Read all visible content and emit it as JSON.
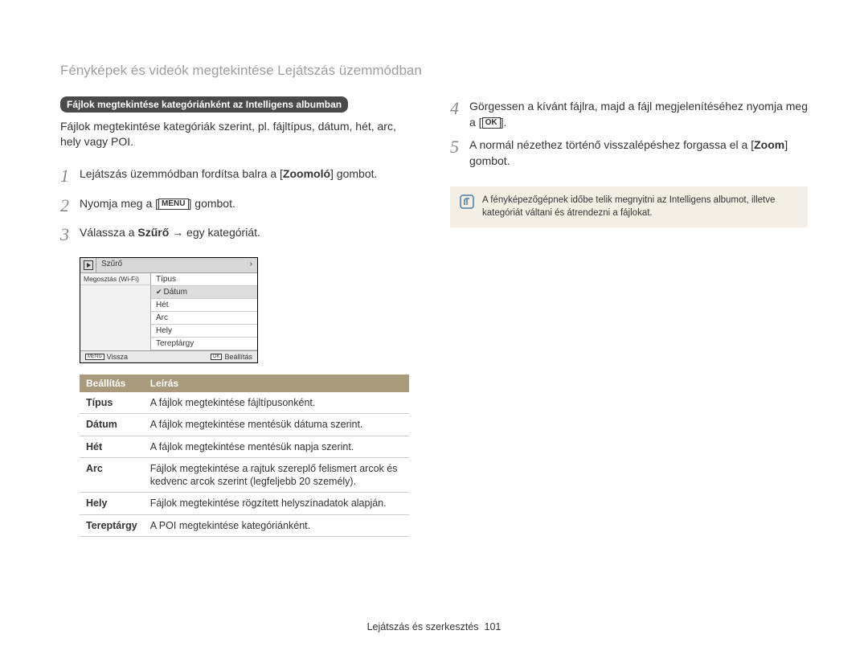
{
  "pageTitle": "Fényképek és videók megtekintése Lejátszás üzemmódban",
  "sectionBadge": "Fájlok megtekintése kategóriánként az Intelligens albumban",
  "introText": "Fájlok megtekintése kategóriák szerint, pl. fájltípus, dátum, hét, arc, hely vagy POI.",
  "left": {
    "step1_a": "Lejátszás üzemmódban fordítsa balra a [",
    "step1_b": "Zoomoló",
    "step1_c": "] gombot.",
    "step2_a": "Nyomja meg a [",
    "step2_menu": "MENU",
    "step2_b": "] gombot.",
    "step3_a": "Válassza a ",
    "step3_b": "Szűrő",
    "step3_c": " → egy kategóriát."
  },
  "camera": {
    "topTab": "Szűrő",
    "leftItems": [
      "Megosztás (Wi-Fi)"
    ],
    "rightItems": [
      {
        "label": "Típus",
        "selected": false
      },
      {
        "label": "Dátum",
        "selected": true
      },
      {
        "label": "Hét",
        "selected": false
      },
      {
        "label": "Arc",
        "selected": false
      },
      {
        "label": "Hely",
        "selected": false
      },
      {
        "label": "Tereptárgy",
        "selected": false
      }
    ],
    "bottomBack": "Vissza",
    "bottomBackBtn": "MENU",
    "bottomSet": "Beállítás",
    "bottomSetBtn": "OK"
  },
  "table": {
    "h1": "Beállítás",
    "h2": "Leírás",
    "rows": [
      {
        "k": "Típus",
        "v": "A fájlok megtekintése fájltípusonként."
      },
      {
        "k": "Dátum",
        "v": "A fájlok megtekintése mentésük dátuma szerint."
      },
      {
        "k": "Hét",
        "v": "A fájlok megtekintése mentésük napja szerint."
      },
      {
        "k": "Arc",
        "v": "Fájlok megtekintése a rajtuk szereplő felismert arcok és kedvenc arcok szerint (legfeljebb 20 személy)."
      },
      {
        "k": "Hely",
        "v": "Fájlok megtekintése rögzített helyszínadatok alapján."
      },
      {
        "k": "Tereptárgy",
        "v": "A POI megtekintése kategóriánként."
      }
    ]
  },
  "right": {
    "step4_a": "Görgessen a kívánt fájlra, majd a fájl megjelenítéséhez nyomja meg a [",
    "step4_ok": "OK",
    "step4_b": "].",
    "step5_a": "A normál nézethez történő visszalépéshez forgassa el a [",
    "step5_zoom": "Zoom",
    "step5_b": "] gombot."
  },
  "note": "A fényképezőgépnek időbe telik megnyitni az Intelligens albumot, illetve kategóriát váltani és átrendezni a fájlokat.",
  "footer_a": "Lejátszás és szerkesztés",
  "footer_b": "101"
}
